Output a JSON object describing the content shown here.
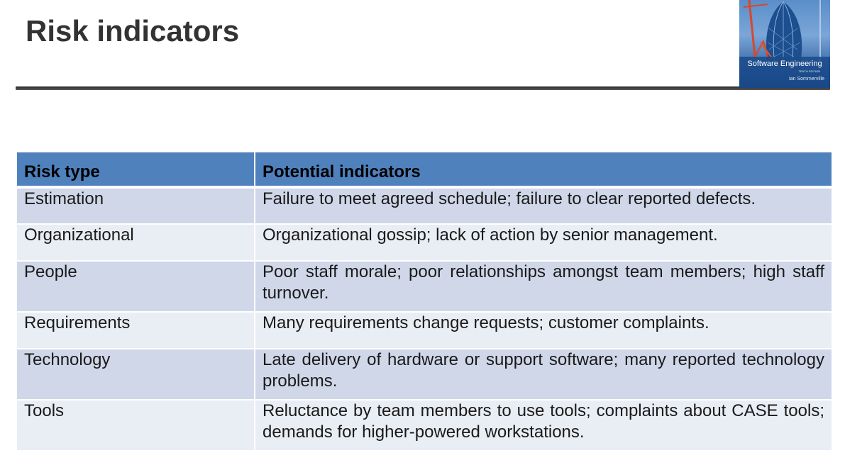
{
  "slide": {
    "title": "Risk indicators"
  },
  "cover": {
    "title": "Software Engineering",
    "edition": "TENTH EDITION",
    "author": "Ian Sommerville",
    "colors": {
      "sky": "#5b8ec9",
      "tower": "#1d4f8f",
      "crane": "#d9472b"
    }
  },
  "table": {
    "headers": [
      "Risk type",
      "Potential indicators"
    ],
    "rows": [
      {
        "type": "Estimation",
        "indicators": "Failure to meet agreed schedule; failure to clear reported defects."
      },
      {
        "type": "Organizational",
        "indicators": "Organizational gossip; lack of action by senior management."
      },
      {
        "type": "People",
        "indicators": "Poor staff morale; poor relationships amongst team members; high staff turnover."
      },
      {
        "type": "Requirements",
        "indicators": "Many requirements change requests; customer complaints."
      },
      {
        "type": "Technology",
        "indicators": "Late delivery of hardware or support software; many reported technology problems."
      },
      {
        "type": "Tools",
        "indicators": "Reluctance by team members to use tools; complaints about CASE tools; demands for higher-powered workstations."
      }
    ],
    "colors": {
      "header": "#4f81bd",
      "row_odd": "#cfd7e8",
      "row_even": "#e9edf4"
    }
  }
}
